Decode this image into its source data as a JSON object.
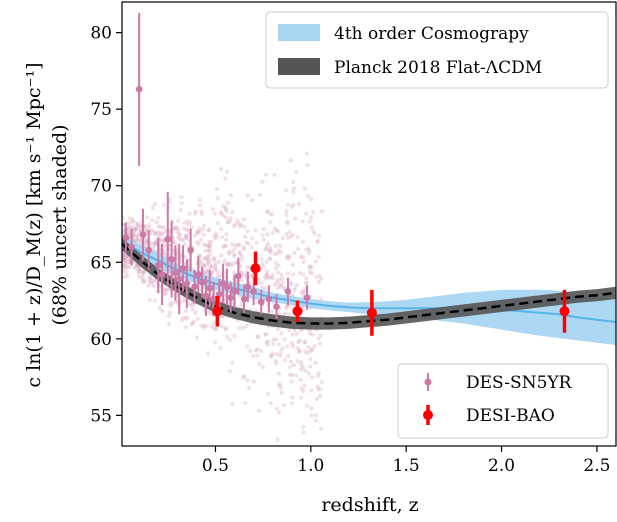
{
  "chart_data": {
    "type": "scatter",
    "xlabel": "redshift, z",
    "ylabel_line1": "c ln(1 + z)/D_M(z) [km s⁻¹ Mpc⁻¹]",
    "ylabel_line2": "(68% uncert shaded)",
    "xlim": [
      0.01,
      2.6
    ],
    "ylim": [
      53,
      82
    ],
    "xticks": [
      0.5,
      1.0,
      1.5,
      2.0,
      2.5
    ],
    "xtick_labels": [
      "0.5",
      "1.0",
      "1.5",
      "2.0",
      "2.5"
    ],
    "yticks": [
      55,
      60,
      65,
      70,
      75,
      80
    ],
    "ytick_labels": [
      "55",
      "60",
      "65",
      "70",
      "75",
      "80"
    ],
    "grid": false,
    "legend_top": {
      "placement": "top-right",
      "entries": [
        {
          "label": "4th order Cosmograpy",
          "color": "#a8d6f2"
        },
        {
          "label": "Planck 2018 Flat-ΛCDM",
          "color": "#555555"
        }
      ]
    },
    "legend_bottom": {
      "placement": "bottom-right",
      "entries": [
        {
          "label": "DES-SN5YR",
          "color": "#cc79a7"
        },
        {
          "label": "DESI-BAO",
          "color": "#ff0000"
        }
      ]
    },
    "series": [
      {
        "name": "4th order Cosmograpy",
        "kind": "band",
        "color": "#56b4e9",
        "fill": "#a8d6f2",
        "x": [
          0.01,
          0.1,
          0.2,
          0.3,
          0.4,
          0.5,
          0.6,
          0.7,
          0.8,
          0.9,
          1.0,
          1.1,
          1.2,
          1.3,
          1.4,
          1.5,
          1.6,
          1.7,
          1.8,
          1.9,
          2.0,
          2.1,
          2.2,
          2.3,
          2.4,
          2.5,
          2.6
        ],
        "y": [
          66.4,
          65.7,
          65.1,
          64.5,
          64.0,
          63.6,
          63.3,
          63.0,
          62.7,
          62.5,
          62.3,
          62.15,
          62.05,
          62.0,
          62.0,
          62.0,
          62.0,
          62.0,
          62.0,
          61.95,
          61.9,
          61.8,
          61.7,
          61.6,
          61.4,
          61.25,
          61.1
        ],
        "y_low": [
          65.9,
          65.2,
          64.6,
          64.1,
          63.6,
          63.2,
          62.9,
          62.6,
          62.4,
          62.2,
          62.0,
          61.85,
          61.75,
          61.6,
          61.55,
          61.45,
          61.3,
          61.15,
          61.0,
          60.8,
          60.6,
          60.4,
          60.2,
          60.05,
          59.9,
          59.75,
          59.6
        ],
        "y_high": [
          66.9,
          66.2,
          65.6,
          64.9,
          64.4,
          64.0,
          63.7,
          63.4,
          63.0,
          62.8,
          62.6,
          62.45,
          62.35,
          62.4,
          62.45,
          62.55,
          62.7,
          62.85,
          63.0,
          63.1,
          63.2,
          63.2,
          63.2,
          63.15,
          62.9,
          62.75,
          62.6
        ]
      },
      {
        "name": "Planck 2018 Flat-ΛCDM",
        "kind": "band",
        "color": "#000000",
        "fill": "#555555",
        "x": [
          0.01,
          0.1,
          0.2,
          0.3,
          0.4,
          0.5,
          0.6,
          0.7,
          0.8,
          0.9,
          1.0,
          1.1,
          1.2,
          1.3,
          1.4,
          1.5,
          1.6,
          1.7,
          1.8,
          1.9,
          2.0,
          2.1,
          2.2,
          2.3,
          2.4,
          2.5,
          2.6
        ],
        "y": [
          66.2,
          65.2,
          64.2,
          63.4,
          62.7,
          62.1,
          61.7,
          61.4,
          61.2,
          61.05,
          61.0,
          61.0,
          61.05,
          61.15,
          61.25,
          61.4,
          61.55,
          61.7,
          61.85,
          62.0,
          62.15,
          62.3,
          62.45,
          62.6,
          62.75,
          62.85,
          63.0
        ],
        "y_low": [
          65.8,
          64.8,
          63.8,
          63.0,
          62.3,
          61.7,
          61.3,
          61.0,
          60.8,
          60.65,
          60.6,
          60.6,
          60.65,
          60.75,
          60.85,
          61.0,
          61.15,
          61.3,
          61.45,
          61.6,
          61.75,
          61.9,
          62.05,
          62.2,
          62.35,
          62.45,
          62.6
        ],
        "y_high": [
          66.6,
          65.6,
          64.6,
          63.8,
          63.1,
          62.5,
          62.1,
          61.8,
          61.6,
          61.45,
          61.4,
          61.4,
          61.45,
          61.55,
          61.65,
          61.8,
          61.95,
          62.1,
          62.25,
          62.4,
          62.55,
          62.7,
          62.85,
          63.0,
          63.15,
          63.25,
          63.4
        ]
      },
      {
        "name": "DES-SN5YR",
        "kind": "errorbar",
        "color": "#cc79a7",
        "x": [
          0.03,
          0.06,
          0.1,
          0.12,
          0.15,
          0.2,
          0.22,
          0.25,
          0.27,
          0.29,
          0.31,
          0.33,
          0.35,
          0.37,
          0.39,
          0.41,
          0.43,
          0.45,
          0.47,
          0.49,
          0.52,
          0.54,
          0.56,
          0.58,
          0.6,
          0.62,
          0.65,
          0.67,
          0.7,
          0.74,
          0.78,
          0.82,
          0.88,
          0.98
        ],
        "y": [
          66.6,
          66.0,
          76.3,
          66.8,
          65.8,
          64.8,
          64.2,
          66.5,
          65.2,
          64.3,
          63.9,
          64.6,
          63.6,
          65.8,
          63.4,
          64.2,
          63.7,
          62.8,
          63.3,
          62.6,
          62.9,
          63.6,
          63.4,
          62.7,
          63.1,
          64.1,
          62.6,
          63.4,
          63.1,
          62.4,
          62.6,
          62.1,
          63.1,
          62.7
        ],
        "err": [
          1.0,
          1.2,
          5.0,
          1.7,
          1.3,
          1.8,
          2.0,
          3.1,
          2.5,
          1.8,
          2.3,
          1.5,
          1.6,
          1.4,
          1.1,
          1.2,
          1.0,
          1.3,
          1.2,
          1.1,
          1.0,
          1.3,
          1.2,
          1.0,
          1.1,
          1.2,
          0.9,
          1.0,
          0.9,
          0.8,
          0.9,
          0.8,
          0.9,
          0.8
        ]
      },
      {
        "name": "DESI-BAO",
        "kind": "errorbar",
        "color": "#ff0000",
        "x": [
          0.51,
          0.71,
          0.93,
          1.32,
          2.33
        ],
        "y": [
          61.8,
          64.6,
          61.8,
          61.7,
          61.8
        ],
        "err": [
          1.0,
          1.1,
          0.7,
          1.5,
          1.4
        ]
      }
    ],
    "background_scatter": {
      "color": "#d9a7c0",
      "note": "faint individual supernova points"
    }
  }
}
